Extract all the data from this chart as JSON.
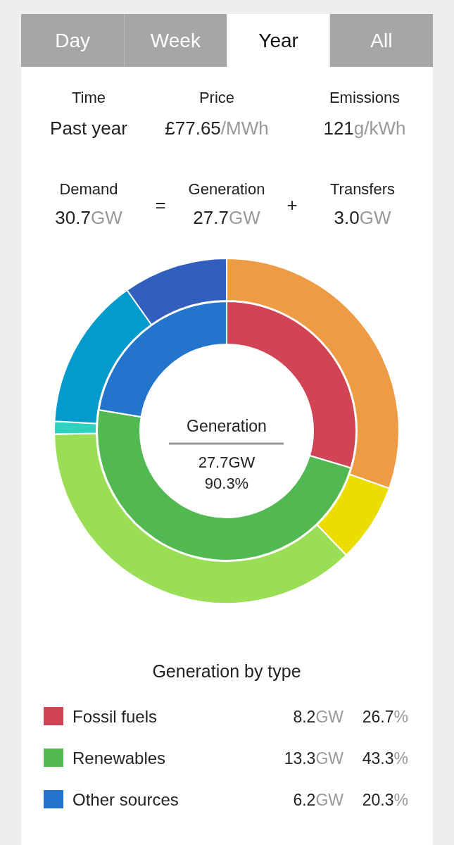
{
  "chart_data": [
    {
      "type": "other",
      "annotations": [
        "Day",
        "Week",
        "Year",
        "All",
        "Time",
        "Past year",
        "Price",
        "£77.65/MWh",
        "Emissions",
        "121g/kWh",
        "Demand",
        "30.7GW",
        "=",
        "Generation",
        "27.7GW",
        "+",
        "Transfers",
        "3.0GW"
      ]
    },
    {
      "type": "donut",
      "categories": [
        null,
        null,
        null,
        null,
        null,
        null
      ],
      "values": [
        30.4,
        7.4,
        36.9,
        1.2,
        14.3,
        9.8
      ],
      "colors": [
        "#ee9b45",
        "#ecdd00",
        "#9ade55",
        "#2ed3c0",
        "#039bcc",
        "#325fbd"
      ]
    },
    {
      "type": "donut",
      "title": "Generation by type",
      "categories": [
        "Fossil fuels",
        "Renewables",
        "Other sources"
      ],
      "values": [
        29.6,
        48.0,
        22.4
      ],
      "colors": [
        "#d04456",
        "#52b852",
        "#2274cc"
      ],
      "legend": "bottom",
      "annotations": [
        "Generation",
        "27.7GW",
        "90.3%",
        "8.2GW",
        "26.7%",
        "13.3GW",
        "43.3%",
        "6.2GW",
        "20.3%"
      ]
    }
  ]
}
